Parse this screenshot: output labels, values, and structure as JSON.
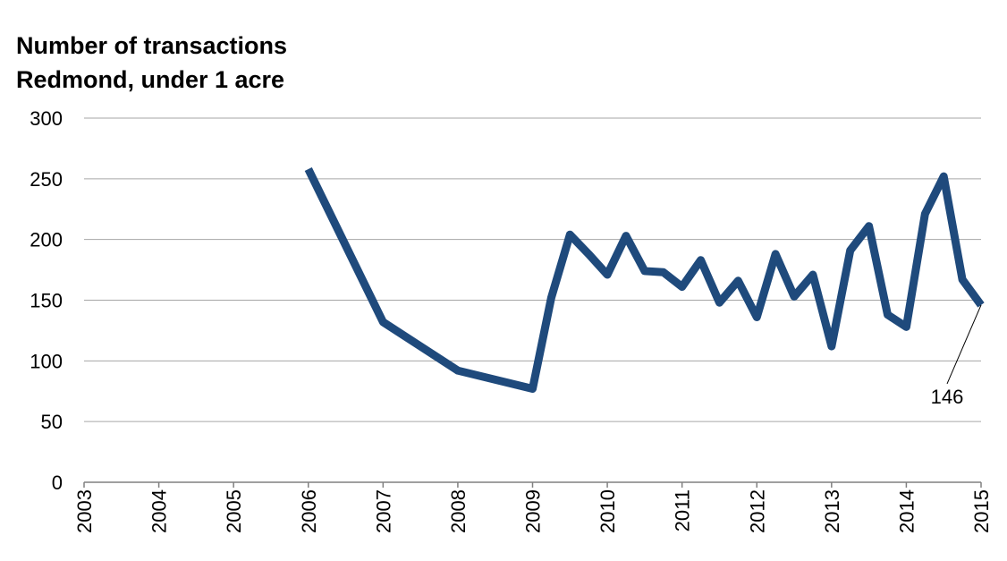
{
  "chart_data": {
    "type": "line",
    "title": "Number of transactions",
    "subtitle": "Redmond, under 1 acre",
    "x": [
      2006,
      2007,
      2008,
      2009,
      2009.25,
      2009.5,
      2009.75,
      2010,
      2010.25,
      2010.5,
      2010.75,
      2011,
      2011.25,
      2011.5,
      2011.75,
      2012,
      2012.25,
      2012.5,
      2012.75,
      2013,
      2013.25,
      2013.5,
      2013.75,
      2014,
      2014.25,
      2014.5,
      2014.75,
      2015
    ],
    "series": [
      {
        "color": "#1f4a7c",
        "values": [
          258,
          132,
          92,
          77,
          152,
          204,
          188,
          171,
          203,
          174,
          173,
          161,
          183,
          148,
          166,
          136,
          188,
          153,
          171,
          112,
          191,
          211,
          138,
          128,
          221,
          252,
          167,
          146
        ]
      }
    ],
    "xlim": [
      2003,
      2015
    ],
    "xticks": [
      2003,
      2004,
      2005,
      2006,
      2007,
      2008,
      2009,
      2010,
      2011,
      2012,
      2013,
      2014,
      2015
    ],
    "ylim": [
      0,
      300
    ],
    "yticks": [
      0,
      50,
      100,
      150,
      200,
      250,
      300
    ],
    "grid": true,
    "annotations": [
      {
        "text": "146",
        "x": 2015,
        "y": 146
      }
    ]
  }
}
